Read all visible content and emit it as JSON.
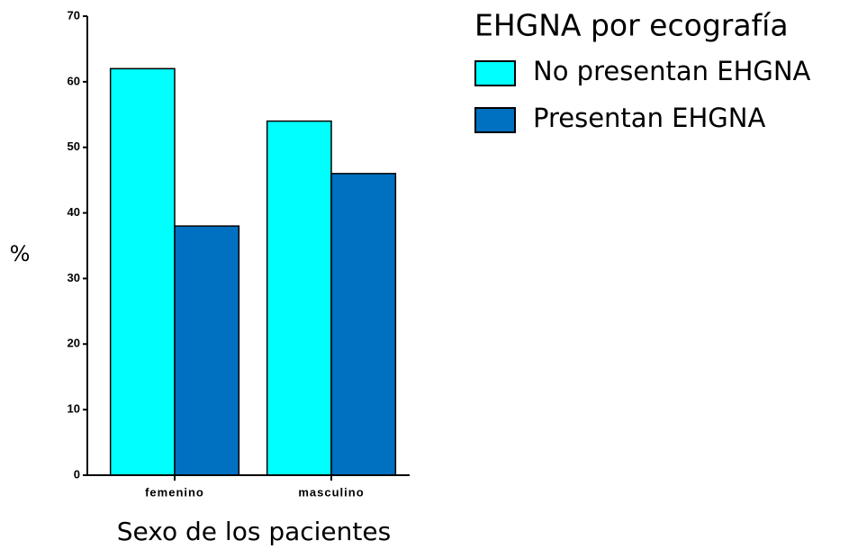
{
  "chart_data": {
    "type": "bar",
    "categories": [
      "femenino",
      "masculino"
    ],
    "series": [
      {
        "name": "No presentan EHGNA",
        "color": "#00ffff",
        "values": [
          62,
          54
        ]
      },
      {
        "name": "Presentan EHGNA",
        "color": "#0070c0",
        "values": [
          38,
          46
        ]
      }
    ],
    "legend_title": "EHGNA por ecografía",
    "xlabel": "Sexo de los pacientes",
    "ylabel": "%",
    "ylim": [
      0,
      70
    ],
    "yticks": [
      0,
      10,
      20,
      30,
      40,
      50,
      60,
      70
    ],
    "legend": "right",
    "grid": false
  }
}
